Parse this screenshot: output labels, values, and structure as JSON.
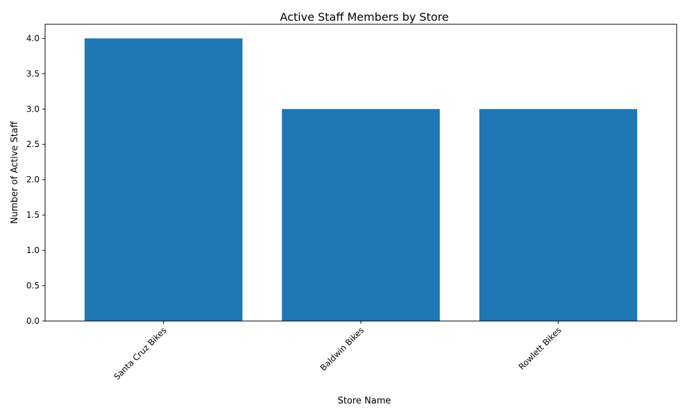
{
  "chart_data": {
    "type": "bar",
    "title": "Active Staff Members by Store",
    "xlabel": "Store Name",
    "ylabel": "Number of Active Staff",
    "categories": [
      "Santa Cruz Bikes",
      "Baldwin Bikes",
      "Rowlett Bikes"
    ],
    "values": [
      4,
      3,
      3
    ],
    "ylim": [
      0,
      4.2
    ],
    "yticks": [
      "0.0",
      "0.5",
      "1.0",
      "1.5",
      "2.0",
      "2.5",
      "3.0",
      "3.5",
      "4.0"
    ],
    "bar_color": "#1f77b4",
    "grid": false,
    "legend": "none"
  }
}
